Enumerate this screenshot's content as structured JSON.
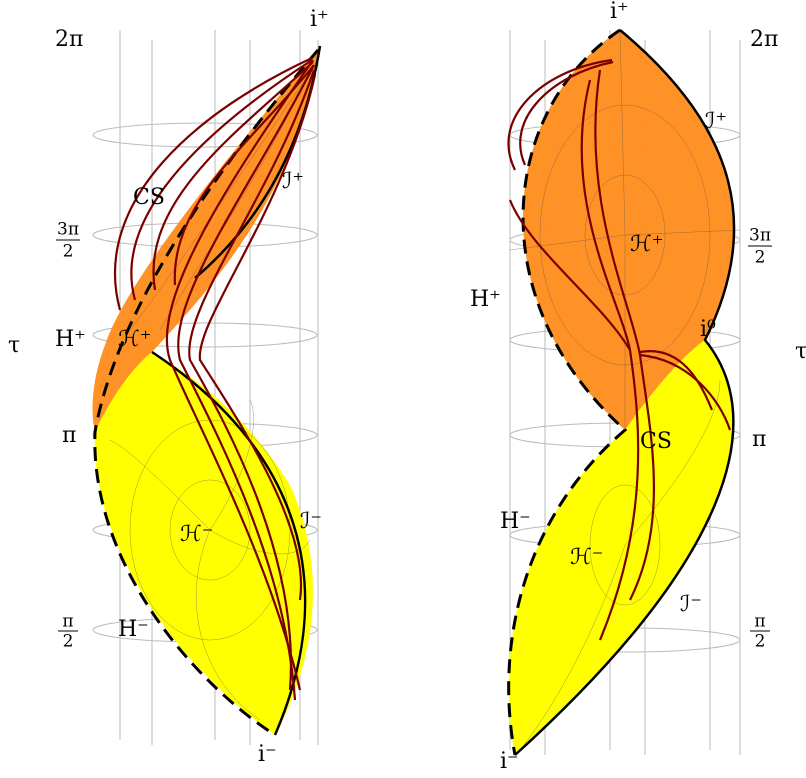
{
  "left": {
    "i_plus": "i⁺",
    "two_pi": "2π",
    "scri_plus": "ℐ⁺",
    "cs": "CS",
    "three_pi_over_2": {
      "numerator": "3π",
      "denominator": "2"
    },
    "horizon_plus": "H⁺",
    "cal_h_plus": "ℋ⁺",
    "tau": "τ",
    "pi": "π",
    "cal_h_minus": "ℋ⁻",
    "scri_minus": "ℐ⁻",
    "pi_over_2": {
      "numerator": "π",
      "denominator": "2"
    },
    "horizon_minus": "H⁻",
    "i_minus": "i⁻"
  },
  "right": {
    "i_plus": "i⁺",
    "two_pi": "2π",
    "scri_plus": "ℐ⁺",
    "cal_h_plus": "ℋ⁺",
    "three_pi_over_2": {
      "numerator": "3π",
      "denominator": "2"
    },
    "horizon_plus": "H⁺",
    "i_zero": "i⁰",
    "tau": "τ",
    "cs": "CS",
    "pi": "π",
    "horizon_minus": "H⁻",
    "cal_h_minus": "ℋ⁻",
    "scri_minus": "ℐ⁻",
    "pi_over_2": {
      "numerator": "π",
      "denominator": "2"
    },
    "i_minus": "i⁻"
  }
}
